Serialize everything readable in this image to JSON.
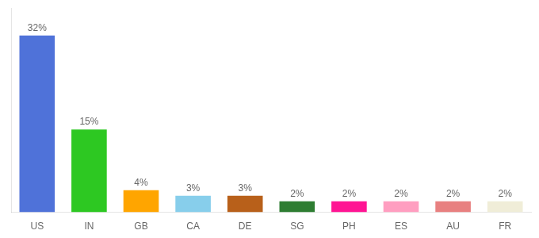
{
  "chart_data": {
    "type": "bar",
    "categories": [
      "US",
      "IN",
      "GB",
      "CA",
      "DE",
      "SG",
      "PH",
      "ES",
      "AU",
      "FR"
    ],
    "values": [
      32,
      15,
      4,
      3,
      3,
      2,
      2,
      2,
      2,
      2
    ],
    "value_labels": [
      "32%",
      "15%",
      "4%",
      "3%",
      "3%",
      "2%",
      "2%",
      "2%",
      "2%",
      "2%"
    ],
    "colors": [
      "#4F72D9",
      "#2DC822",
      "#FFA500",
      "#87CEEB",
      "#B8601A",
      "#2E7D32",
      "#FF1493",
      "#FF9EC0",
      "#E88080",
      "#F0EDD8"
    ],
    "ylim": [
      0,
      37
    ],
    "grid": false,
    "data_labels": true,
    "tick_labels": "x"
  }
}
